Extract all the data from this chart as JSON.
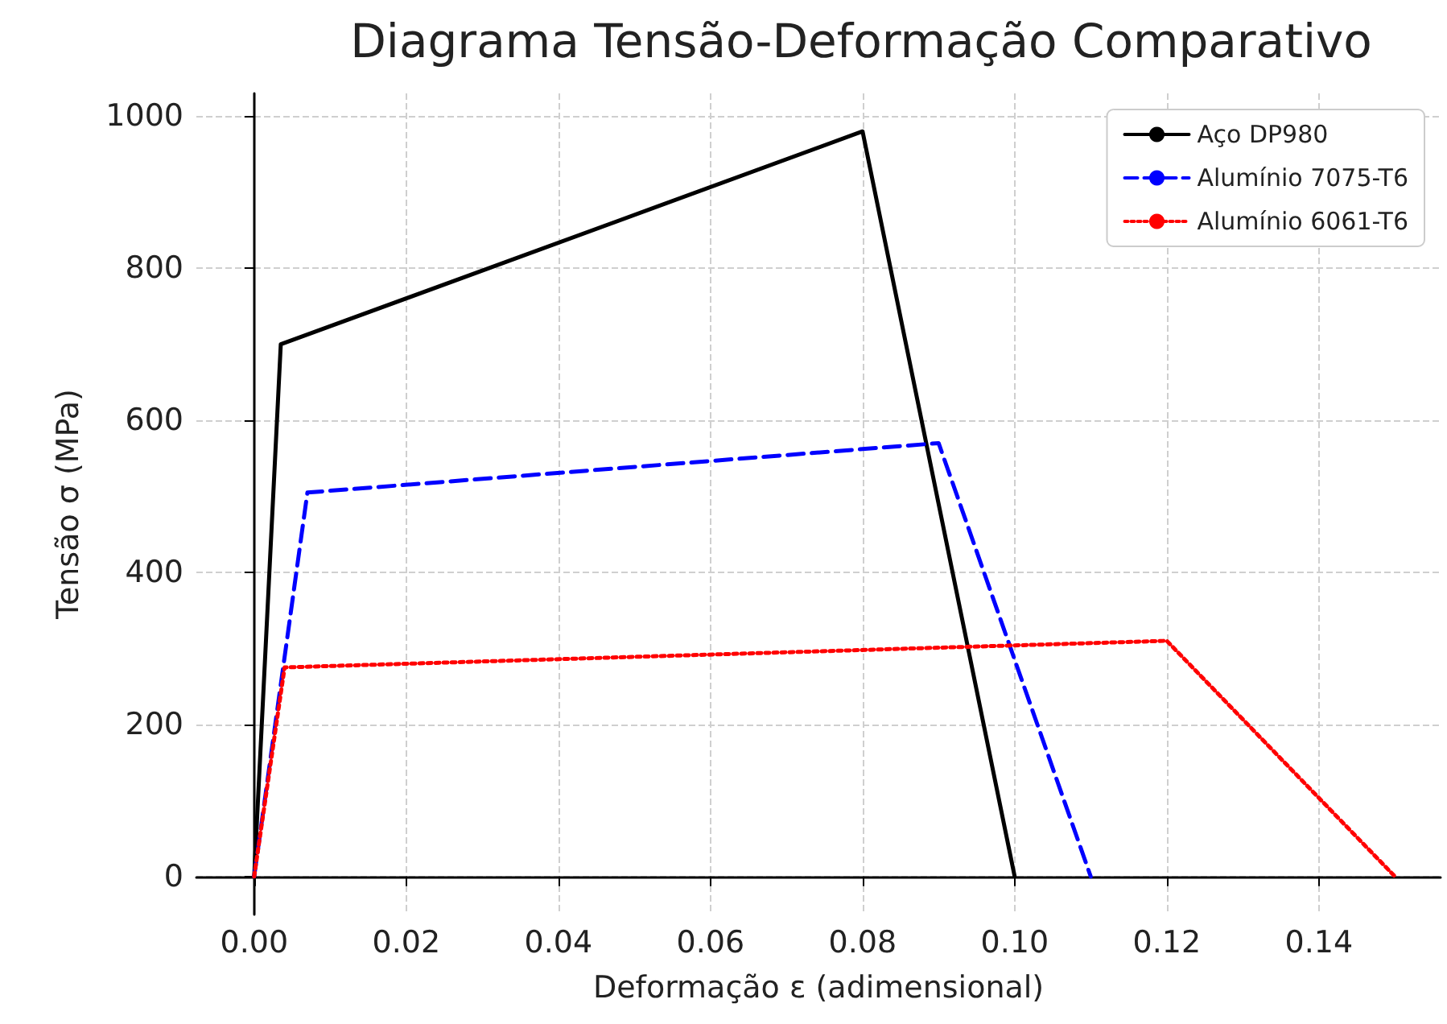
{
  "chart_data": {
    "type": "line",
    "title": "Diagrama Tensão-Deformação Comparativo",
    "xlabel": "Deformação ε (adimensional)",
    "ylabel": "Tensão σ (MPa)",
    "xlim": [
      -0.0076,
      0.156
    ],
    "xticks": [
      {
        "value": 0,
        "label": "0.00"
      },
      {
        "value": 0.02,
        "label": "0.02"
      },
      {
        "value": 0.04,
        "label": "0.04"
      },
      {
        "value": 0.06,
        "label": "0.06"
      },
      {
        "value": 0.08,
        "label": "0.08"
      },
      {
        "value": 0.1,
        "label": "0.10"
      },
      {
        "value": 0.12,
        "label": "0.12"
      },
      {
        "value": 0.14,
        "label": "0.14"
      }
    ],
    "ylim": [
      -50,
      1030
    ],
    "yticks": [
      0,
      200,
      400,
      600,
      800,
      1000
    ],
    "grid": true,
    "legend": "top right",
    "marker": "none",
    "series": [
      {
        "name": "Aço DP980",
        "color": "#000000",
        "line_style": "solid",
        "x": [
          0,
          0.0035,
          0.08,
          0.1
        ],
        "values": [
          0,
          700,
          980,
          0
        ]
      },
      {
        "name": "Alumínio 7075-T6",
        "color": "#0000ff",
        "line_style": "dashed",
        "x": [
          0,
          0.007,
          0.09,
          0.11
        ],
        "values": [
          0,
          505,
          570,
          0
        ]
      },
      {
        "name": "Alumínio 6061-T6",
        "color": "#ff0000",
        "line_style": "dotted",
        "x": [
          0,
          0.004,
          0.12,
          0.15
        ],
        "values": [
          0,
          275,
          310,
          0
        ]
      }
    ]
  }
}
